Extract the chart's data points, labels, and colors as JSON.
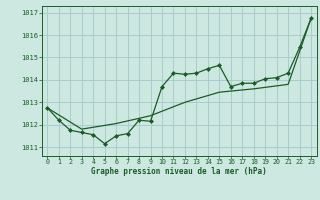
{
  "title": "Graphe pression niveau de la mer (hPa)",
  "background_color": "#cce8e0",
  "grid_color": "#aacccc",
  "line_color": "#1a5c28",
  "marker_color": "#1a5c28",
  "xlim": [
    -0.5,
    23.5
  ],
  "ylim": [
    1010.6,
    1017.3
  ],
  "yticks": [
    1011,
    1012,
    1013,
    1014,
    1015,
    1016,
    1017
  ],
  "xticks": [
    0,
    1,
    2,
    3,
    4,
    5,
    6,
    7,
    8,
    9,
    10,
    11,
    12,
    13,
    14,
    15,
    16,
    17,
    18,
    19,
    20,
    21,
    22,
    23
  ],
  "series1_x": [
    0,
    1,
    2,
    3,
    4,
    5,
    6,
    7,
    8,
    9,
    10,
    11,
    12,
    13,
    14,
    15,
    16,
    17,
    18,
    19,
    20,
    21,
    22,
    23
  ],
  "series1_y": [
    1012.75,
    1012.2,
    1011.75,
    1011.65,
    1011.55,
    1011.15,
    1011.5,
    1011.6,
    1012.2,
    1012.15,
    1013.7,
    1014.3,
    1014.25,
    1014.3,
    1014.5,
    1014.65,
    1013.7,
    1013.85,
    1013.85,
    1014.05,
    1014.1,
    1014.3,
    1015.45,
    1016.75
  ],
  "series2_x": [
    0,
    3,
    6,
    9,
    12,
    15,
    18,
    21,
    23
  ],
  "series2_y": [
    1012.75,
    1011.8,
    1012.05,
    1012.4,
    1013.0,
    1013.45,
    1013.6,
    1013.8,
    1016.75
  ]
}
